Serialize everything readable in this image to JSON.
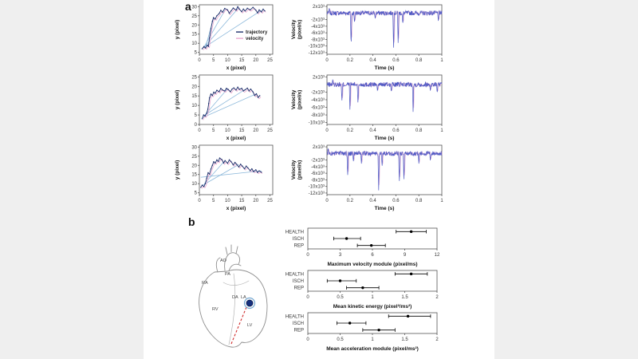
{
  "panels": {
    "a": "a",
    "b": "b"
  },
  "colors": {
    "trajectory": "#1d2f6b",
    "velocity_pink": "#eaa8cf",
    "connector_blue": "#8ab7da",
    "timeseries_blue": "#4d59c4",
    "marker_navy": "#16307e",
    "ring_blue": "#74a9d2",
    "scan_red": "#cf2a2a"
  },
  "heart": {
    "labels": {
      "ao": "AO",
      "pa": "PA",
      "ra": "RA",
      "rv": "RV",
      "da": "DA",
      "la": "LA",
      "lv": "LV"
    }
  },
  "chart_data": [
    {
      "id": "traj-1",
      "kind": "trajectory",
      "type": "line",
      "xlabel": "x (pixel)",
      "ylabel": "y (pixel)",
      "xlim": [
        0,
        26
      ],
      "ylim": [
        4,
        31
      ],
      "xticks": [
        0,
        5,
        10,
        15,
        20,
        25
      ],
      "yticks": [
        5,
        10,
        15,
        20,
        25,
        30
      ],
      "connector_color": "#8ab7da",
      "connectors": [
        [
          [
            1.5,
            7.5
          ],
          [
            14,
            29.5
          ]
        ],
        [
          [
            2,
            7
          ],
          [
            5,
            23.5
          ]
        ],
        [
          [
            2.5,
            8.5
          ],
          [
            22,
            28
          ]
        ],
        [
          [
            1.5,
            7.5
          ],
          [
            9,
            28
          ]
        ]
      ],
      "series": [
        {
          "name": "velocity",
          "color": "#eaa8cf",
          "width": 0.8,
          "offset_of": "trajectory",
          "offset": [
            0.35,
            -0.7
          ]
        },
        {
          "name": "trajectory",
          "color": "#1d2f6b",
          "width": 0.9,
          "markers": true,
          "points": [
            [
              1,
              7
            ],
            [
              1.6,
              8.2
            ],
            [
              2.2,
              7.4
            ],
            [
              2.8,
              9
            ],
            [
              3.2,
              8.3
            ],
            [
              3.6,
              13
            ],
            [
              4.1,
              18
            ],
            [
              4.6,
              22
            ],
            [
              5,
              24
            ],
            [
              5.6,
              23.2
            ],
            [
              6.2,
              25
            ],
            [
              7,
              26.2
            ],
            [
              7.6,
              28
            ],
            [
              8.2,
              27
            ],
            [
              9,
              29
            ],
            [
              10,
              28.2
            ],
            [
              10.6,
              26.3
            ],
            [
              11.2,
              27.6
            ],
            [
              12,
              29.2
            ],
            [
              13,
              28.1
            ],
            [
              13.6,
              30
            ],
            [
              14.2,
              28.6
            ],
            [
              15,
              27.2
            ],
            [
              15.6,
              28.7
            ],
            [
              16.2,
              27.6
            ],
            [
              17,
              29.1
            ],
            [
              18,
              28.2
            ],
            [
              19,
              29.6
            ],
            [
              20,
              28.1
            ],
            [
              20.6,
              26.6
            ],
            [
              21.2,
              28.2
            ],
            [
              22,
              27.1
            ],
            [
              22.6,
              28.6
            ],
            [
              23.2,
              27.6
            ]
          ]
        }
      ],
      "legend": {
        "items": [
          {
            "label": "trajectory",
            "color": "#1d2f6b"
          },
          {
            "label": "velocity",
            "color": "#eaa8cf"
          }
        ]
      }
    },
    {
      "id": "vel-1",
      "kind": "timeseries",
      "type": "line",
      "xlabel": "Time (s)",
      "ylabel": "Velocity\n(pixel/s)",
      "xlim": [
        0,
        1
      ],
      "ylim": [
        -12500,
        2500
      ],
      "xticks": [
        0,
        0.2,
        0.4,
        0.6,
        0.8,
        1
      ],
      "yticks": [
        {
          "v": 2000,
          "label": "2x10³"
        },
        {
          "v": -2000,
          "label": "-2x10³"
        },
        {
          "v": -4000,
          "label": "-4x10³"
        },
        {
          "v": -6000,
          "label": "-6x10³"
        },
        {
          "v": -8000,
          "label": "-8x10³"
        },
        {
          "v": -10000,
          "label": "-10x10³"
        },
        {
          "v": -12000,
          "label": "-12x10³"
        }
      ],
      "noise": 700,
      "seed": 7,
      "line_color": "#4d59c4",
      "ghost_color": "#eaa8cf",
      "spikes": [
        {
          "t": 0.02,
          "v": 1600
        },
        {
          "t": 0.21,
          "v": -10600
        },
        {
          "t": 0.24,
          "v": -3200
        },
        {
          "t": 0.42,
          "v": -1800
        },
        {
          "t": 0.58,
          "v": -11600
        },
        {
          "t": 0.62,
          "v": -10000
        },
        {
          "t": 0.66,
          "v": -3600
        },
        {
          "t": 0.97,
          "v": -2600
        }
      ]
    },
    {
      "id": "traj-2",
      "kind": "trajectory",
      "type": "line",
      "xlabel": "x (pixel)",
      "ylabel": "y (pixel)",
      "xlim": [
        0,
        26
      ],
      "ylim": [
        0,
        26
      ],
      "xticks": [
        0,
        5,
        10,
        15,
        20,
        25
      ],
      "yticks": [
        0,
        5,
        10,
        15,
        20,
        25
      ],
      "connector_color": "#8ab7da",
      "connectors": [
        [
          [
            1,
            3.5
          ],
          [
            20,
            16
          ]
        ],
        [
          [
            1.5,
            4.5
          ],
          [
            16,
            18.2
          ]
        ],
        [
          [
            2,
            5
          ],
          [
            10,
            18.8
          ]
        ]
      ],
      "series": [
        {
          "name": "velocity",
          "color": "#eaa8cf",
          "width": 0.8,
          "offset_of": "trajectory",
          "offset": [
            0.35,
            -0.7
          ]
        },
        {
          "name": "trajectory",
          "color": "#1d2f6b",
          "width": 0.9,
          "markers": true,
          "points": [
            [
              1,
              3
            ],
            [
              1.5,
              5
            ],
            [
              2,
              4.4
            ],
            [
              2.6,
              6
            ],
            [
              3,
              8
            ],
            [
              3.3,
              11
            ],
            [
              3.6,
              14
            ],
            [
              4.1,
              16
            ],
            [
              4.6,
              15.2
            ],
            [
              5.1,
              17
            ],
            [
              5.6,
              16.4
            ],
            [
              6.2,
              18
            ],
            [
              7,
              17.2
            ],
            [
              7.6,
              19
            ],
            [
              8.2,
              18.1
            ],
            [
              9,
              17.6
            ],
            [
              9.6,
              19
            ],
            [
              10.2,
              18.4
            ],
            [
              11,
              17.2
            ],
            [
              11.6,
              18.6
            ],
            [
              12.2,
              19.2
            ],
            [
              13,
              18.1
            ],
            [
              13.6,
              19.6
            ],
            [
              14.2,
              18.4
            ],
            [
              15,
              19
            ],
            [
              15.6,
              17.6
            ],
            [
              16.2,
              18.2
            ],
            [
              17,
              19.1
            ],
            [
              17.6,
              17.6
            ],
            [
              18.2,
              18.6
            ],
            [
              19,
              17.1
            ],
            [
              19.6,
              15.2
            ],
            [
              20.2,
              16.1
            ],
            [
              20.8,
              14.2
            ],
            [
              21.4,
              15.1
            ]
          ]
        }
      ]
    },
    {
      "id": "vel-2",
      "kind": "timeseries",
      "type": "line",
      "xlabel": "Time (s)",
      "ylabel": "Velocity\n(pixel/s)",
      "xlim": [
        0,
        1
      ],
      "ylim": [
        -10500,
        2500
      ],
      "xticks": [
        0,
        0.2,
        0.4,
        0.6,
        0.8,
        1
      ],
      "yticks": [
        {
          "v": 2000,
          "label": "2x10³"
        },
        {
          "v": -2000,
          "label": "-2x10³"
        },
        {
          "v": -4000,
          "label": "-4x10³"
        },
        {
          "v": -6000,
          "label": "-6x10³"
        },
        {
          "v": -8000,
          "label": "-8x10³"
        },
        {
          "v": -10000,
          "label": "-10x10³"
        }
      ],
      "noise": 650,
      "seed": 13,
      "line_color": "#4d59c4",
      "ghost_color": "#eaa8cf",
      "spikes": [
        {
          "t": 0.05,
          "v": 1300
        },
        {
          "t": 0.13,
          "v": -4600
        },
        {
          "t": 0.2,
          "v": -6600
        },
        {
          "t": 0.27,
          "v": -5200
        },
        {
          "t": 0.44,
          "v": -1900
        },
        {
          "t": 0.56,
          "v": -2100
        },
        {
          "t": 0.75,
          "v": -7200
        },
        {
          "t": 0.9,
          "v": -1600
        },
        {
          "t": 0.96,
          "v": -2400
        }
      ]
    },
    {
      "id": "traj-3",
      "kind": "trajectory",
      "type": "line",
      "xlabel": "x (pixel)",
      "ylabel": "y (pixel)",
      "xlim": [
        0,
        26
      ],
      "ylim": [
        4,
        31
      ],
      "xticks": [
        0,
        5,
        10,
        15,
        20,
        25
      ],
      "yticks": [
        5,
        10,
        15,
        20,
        25,
        30
      ],
      "connector_color": "#8ab7da",
      "connectors": [
        [
          [
            0.5,
            13.5
          ],
          [
            22,
            17
          ]
        ],
        [
          [
            1,
            9
          ],
          [
            14,
            20.5
          ]
        ],
        [
          [
            1.8,
            10
          ],
          [
            9,
            22.5
          ]
        ]
      ],
      "series": [
        {
          "name": "velocity",
          "color": "#eaa8cf",
          "width": 0.8,
          "offset_of": "trajectory",
          "offset": [
            0.35,
            -0.7
          ]
        },
        {
          "name": "trajectory",
          "color": "#1d2f6b",
          "width": 0.9,
          "markers": true,
          "points": [
            [
              0.5,
              8
            ],
            [
              1,
              9.2
            ],
            [
              1.6,
              8.4
            ],
            [
              2.1,
              10
            ],
            [
              2.6,
              13
            ],
            [
              3.1,
              16
            ],
            [
              3.6,
              15.2
            ],
            [
              4.1,
              18
            ],
            [
              4.6,
              20
            ],
            [
              5.1,
              22
            ],
            [
              5.6,
              21.2
            ],
            [
              6.2,
              23
            ],
            [
              6.7,
              22.1
            ],
            [
              7.2,
              24
            ],
            [
              8,
              23.1
            ],
            [
              8.6,
              21.2
            ],
            [
              9.1,
              22.6
            ],
            [
              10,
              21.1
            ],
            [
              10.6,
              23
            ],
            [
              11.2,
              22.1
            ],
            [
              12,
              20.2
            ],
            [
              12.6,
              21.6
            ],
            [
              13.2,
              20.6
            ],
            [
              14,
              19.1
            ],
            [
              14.6,
              20.6
            ],
            [
              15.2,
              19.6
            ],
            [
              16,
              18.1
            ],
            [
              16.6,
              19.6
            ],
            [
              17.2,
              18.6
            ],
            [
              18,
              17.1
            ],
            [
              18.6,
              18.1
            ],
            [
              19.2,
              16.6
            ],
            [
              20,
              17.6
            ],
            [
              20.6,
              16.1
            ],
            [
              21.2,
              17
            ],
            [
              22,
              16.2
            ]
          ]
        }
      ]
    },
    {
      "id": "vel-3",
      "kind": "timeseries",
      "type": "line",
      "xlabel": "Time (s)",
      "ylabel": "Velocity\n(pixel/s)",
      "xlim": [
        0,
        1
      ],
      "ylim": [
        -12500,
        2500
      ],
      "xticks": [
        0,
        0.2,
        0.4,
        0.6,
        0.8,
        1
      ],
      "yticks": [
        {
          "v": 2000,
          "label": "2x10³"
        },
        {
          "v": -2000,
          "label": "-2x10³"
        },
        {
          "v": -4000,
          "label": "-4x10³"
        },
        {
          "v": -6000,
          "label": "-6x10³"
        },
        {
          "v": -8000,
          "label": "-8x10³"
        },
        {
          "v": -10000,
          "label": "-10x10³"
        },
        {
          "v": -12000,
          "label": "-12x10³"
        }
      ],
      "noise": 700,
      "seed": 23,
      "line_color": "#4d59c4",
      "ghost_color": "#eaa8cf",
      "spikes": [
        {
          "t": 0.01,
          "v": 1700
        },
        {
          "t": 0.18,
          "v": -7200
        },
        {
          "t": 0.23,
          "v": -2600
        },
        {
          "t": 0.3,
          "v": -3100
        },
        {
          "t": 0.45,
          "v": -11200
        },
        {
          "t": 0.48,
          "v": -4100
        },
        {
          "t": 0.63,
          "v": -9200
        },
        {
          "t": 0.67,
          "v": -8600
        },
        {
          "t": 0.8,
          "v": -3100
        },
        {
          "t": 0.9,
          "v": -2100
        }
      ]
    },
    {
      "id": "forest-1",
      "kind": "forest",
      "type": "scatter",
      "xlabel": "Maximum velocity module (pixel/ms)",
      "xlim": [
        0,
        12
      ],
      "xticks": [
        0,
        3,
        6,
        9,
        12
      ],
      "rows": [
        {
          "label": "HEALTH",
          "mean": 9.6,
          "lo": 8.2,
          "hi": 11.0
        },
        {
          "label": "ISCH",
          "mean": 3.6,
          "lo": 2.4,
          "hi": 4.9
        },
        {
          "label": "REP",
          "mean": 5.9,
          "lo": 4.6,
          "hi": 7.2
        }
      ]
    },
    {
      "id": "forest-2",
      "kind": "forest",
      "type": "scatter",
      "xlabel": "Mean kinetic energy (pixel²/ms²)",
      "xlim": [
        0,
        2
      ],
      "xticks": [
        0,
        0.5,
        1,
        1.5,
        2
      ],
      "rows": [
        {
          "label": "HEALTH",
          "mean": 1.6,
          "lo": 1.35,
          "hi": 1.85
        },
        {
          "label": "ISCH",
          "mean": 0.5,
          "lo": 0.3,
          "hi": 0.75
        },
        {
          "label": "REP",
          "mean": 0.85,
          "lo": 0.6,
          "hi": 1.1
        }
      ]
    },
    {
      "id": "forest-3",
      "kind": "forest",
      "type": "scatter",
      "xlabel": "Mean acceleration module (pixel/ms²)",
      "xlim": [
        0,
        2
      ],
      "xticks": [
        0,
        0.5,
        1,
        1.5,
        2
      ],
      "rows": [
        {
          "label": "HEALTH",
          "mean": 1.55,
          "lo": 1.25,
          "hi": 1.9
        },
        {
          "label": "ISCH",
          "mean": 0.65,
          "lo": 0.45,
          "hi": 0.9
        },
        {
          "label": "REP",
          "mean": 1.1,
          "lo": 0.85,
          "hi": 1.35
        }
      ]
    }
  ]
}
